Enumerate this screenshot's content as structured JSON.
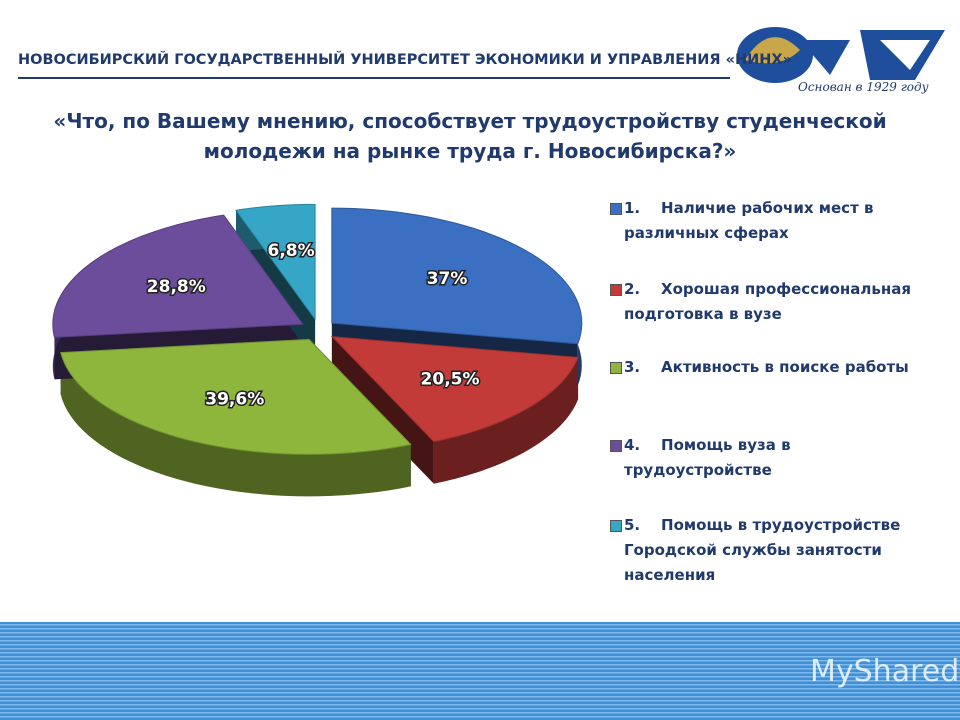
{
  "header": {
    "university": "НОВОСИБИРСКИЙ ГОСУДАРСТВЕННЫЙ УНИВЕРСИТЕТ ЭКОНОМИКИ И УПРАВЛЕНИЯ «НИНХ»",
    "logo_caption": "Основан в 1929 году"
  },
  "watermark": "MyShared",
  "chart_data": {
    "type": "pie3d",
    "title": "«Что, по Вашему мнению, способствует трудоустройству студенческой молодежи на рынке труда г. Новосибирска?»",
    "categories": [
      "1.    Наличие рабочих мест в различных сферах",
      "2.    Хорошая профессиональная подготовка в вузе",
      "3.    Активность в поиске работы",
      "4.    Помощь вуза в трудоустройстве",
      "5.    Помощь в трудоустройстве Городской службы занятости населения"
    ],
    "values": [
      37,
      20.5,
      39.6,
      28.8,
      6.8
    ],
    "value_labels": [
      "37%",
      "20,5%",
      "39,6%",
      "28,8%",
      "6,8%"
    ],
    "colors": [
      "#3b6fc2",
      "#c23b38",
      "#8fb63c",
      "#6b4d9c",
      "#35a6c6"
    ],
    "legend": "right"
  }
}
